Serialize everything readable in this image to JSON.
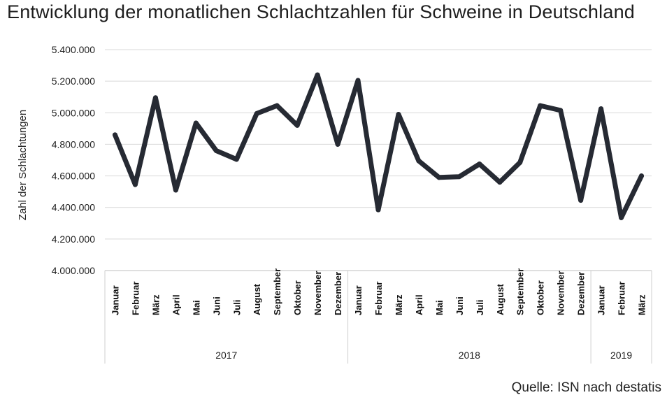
{
  "title": "Entwicklung der monatlichen Schlachtzahlen für Schweine in Deutschland",
  "source": "Quelle: ISN nach destatis",
  "chart_data": {
    "type": "line",
    "title": "Entwicklung der monatlichen Schlachtzahlen für Schweine in Deutschland",
    "ylabel": "Zahl der Schlachtungen",
    "xlabel": "",
    "ylim": [
      4000000,
      5400000
    ],
    "ytick_values": [
      4000000,
      4200000,
      4400000,
      4600000,
      4800000,
      5000000,
      5200000,
      5400000
    ],
    "ytick_labels": [
      "4.000.000",
      "4.200.000",
      "4.400.000",
      "4.600.000",
      "4.800.000",
      "5.000.000",
      "5.200.000",
      "5.400.000"
    ],
    "grid": true,
    "line_color": "#262a33",
    "categories": [
      "Januar",
      "Februar",
      "März",
      "April",
      "Mai",
      "Juni",
      "Juli",
      "August",
      "September",
      "Oktober",
      "November",
      "Dezember",
      "Januar",
      "Februar",
      "März",
      "April",
      "Mai",
      "Juni",
      "Juli",
      "August",
      "September",
      "Oktober",
      "November",
      "Dezember",
      "Januar",
      "Februar",
      "März"
    ],
    "groups": [
      {
        "label": "2017",
        "count": 12
      },
      {
        "label": "2018",
        "count": 12
      },
      {
        "label": "2019",
        "count": 3
      }
    ],
    "values": [
      4860000,
      4545000,
      5095000,
      4510000,
      4935000,
      4760000,
      4705000,
      4995000,
      5045000,
      4920000,
      5240000,
      4800000,
      5205000,
      4385000,
      4990000,
      4695000,
      4590000,
      4595000,
      4675000,
      4560000,
      4685000,
      5045000,
      5015000,
      4445000,
      5025000,
      4335000,
      4600000
    ]
  }
}
